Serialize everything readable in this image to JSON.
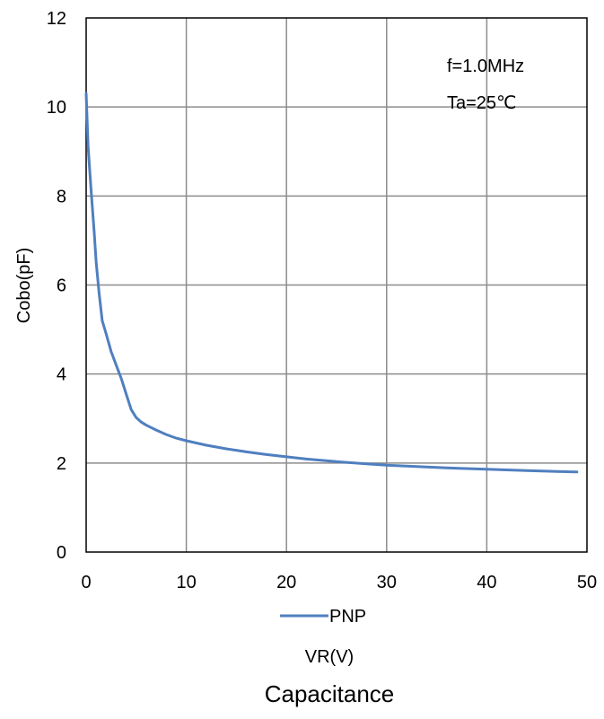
{
  "colors": {
    "series": "#4f7fbf",
    "grid": "#8c8c8c",
    "frame": "#000000",
    "text": "#000000"
  },
  "caption": "Capacitance",
  "annotations": [
    "f=1.0MHz",
    "Ta=25℃"
  ],
  "chart_data": {
    "type": "line",
    "title": "",
    "xlabel": "VR(V)",
    "ylabel": "Cobo(pF)",
    "xlim": [
      0,
      50
    ],
    "ylim": [
      0,
      12
    ],
    "x_ticks": [
      0,
      10,
      20,
      30,
      40,
      50
    ],
    "y_ticks": [
      0,
      2,
      4,
      6,
      8,
      10,
      12
    ],
    "grid": true,
    "legend_position": "bottom",
    "series": [
      {
        "name": "PNP",
        "color": "#4f7fbf",
        "x": [
          0.0,
          0.2,
          0.5,
          0.8,
          1.0,
          1.3,
          1.6,
          2.0,
          2.5,
          3.0,
          3.5,
          4.0,
          4.5,
          5.0,
          5.5,
          6.0,
          7.0,
          8.0,
          9.0,
          10.0,
          12.0,
          14.0,
          16.0,
          18.0,
          20.0,
          22.0,
          25.0,
          28.0,
          30.0,
          33.0,
          36.0,
          40.0,
          44.0,
          47.0,
          49.0
        ],
        "y": [
          10.3,
          9.1,
          8.1,
          7.2,
          6.5,
          5.8,
          5.2,
          4.9,
          4.5,
          4.2,
          3.9,
          3.55,
          3.2,
          3.02,
          2.92,
          2.85,
          2.74,
          2.64,
          2.56,
          2.5,
          2.4,
          2.32,
          2.25,
          2.19,
          2.14,
          2.09,
          2.03,
          1.98,
          1.95,
          1.92,
          1.89,
          1.86,
          1.83,
          1.81,
          1.8
        ]
      }
    ]
  }
}
